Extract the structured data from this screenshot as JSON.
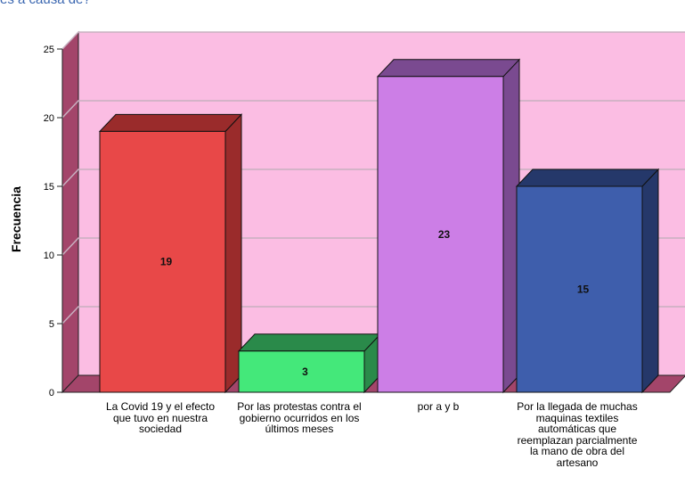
{
  "chart_data": {
    "type": "bar",
    "title": "es a causa de?",
    "ylabel": "Frecuencia",
    "xlabel": "",
    "ylim": [
      0,
      25
    ],
    "yticks": [
      0,
      5,
      10,
      15,
      20,
      25
    ],
    "categories": [
      "La Covid 19 y el efecto que tuvo en nuestra sociedad",
      "Por las protestas contra el gobierno ocurridos en los últimos meses",
      "por a y b",
      "Por la llegada de muchas maquinas textiles automáticas que reemplazan parcialmente la mano de obra del artesano"
    ],
    "values": [
      19,
      3,
      23,
      15
    ],
    "data_labels": [
      "19",
      "3",
      "23",
      "15"
    ],
    "grid": true,
    "colors": {
      "bars": [
        "#e84848",
        "#44e87a",
        "#cc7ee6",
        "#3e5eac"
      ],
      "bar_tops": [
        "#9a2b2b",
        "#2a8a4a",
        "#7a4a90",
        "#25386a"
      ],
      "bar_sides": [
        "#9a2b2b",
        "#2a8a4a",
        "#7a4a90",
        "#25386a"
      ],
      "plot_background": "#fbbde3",
      "left_wall": "#a3456a",
      "floor": "#a3456a",
      "gridline": "#c8b0c0"
    }
  }
}
